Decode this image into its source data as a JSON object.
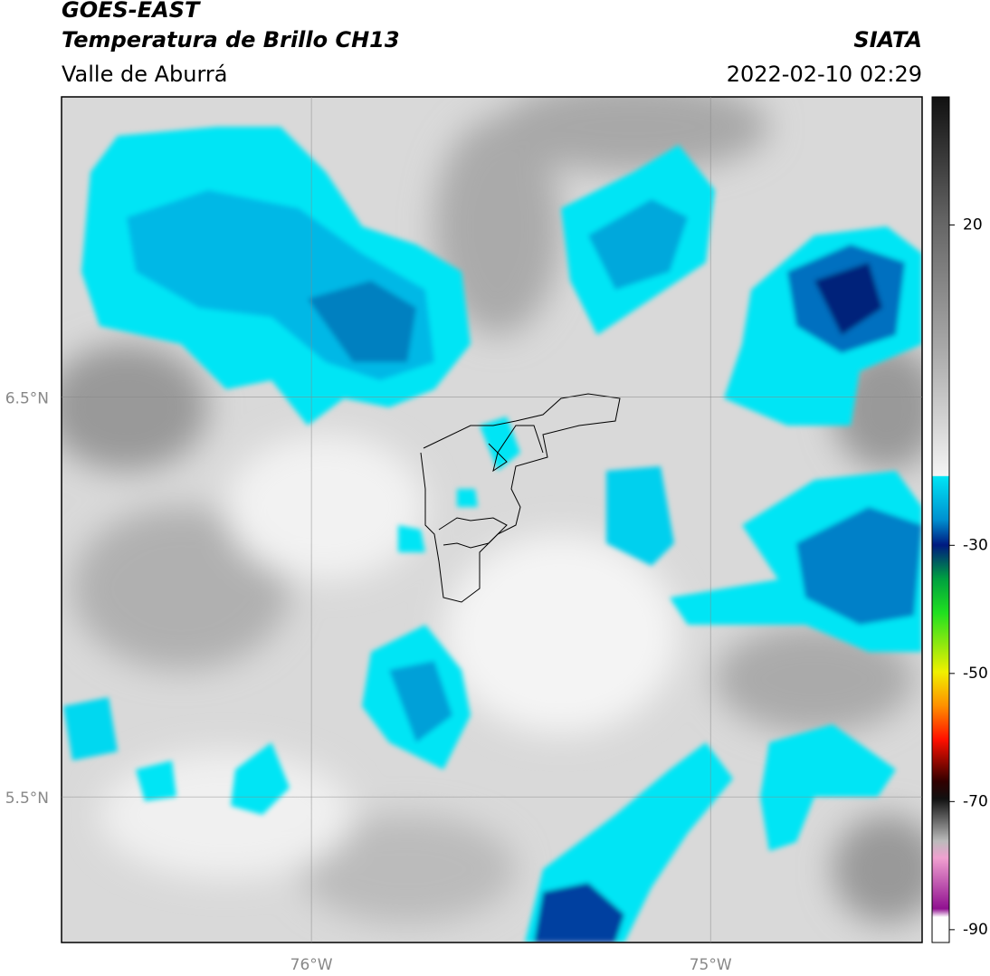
{
  "header": {
    "title": "GOES-EAST",
    "subtitle": "Temperatura de Brillo CH13",
    "region": "Valle de Aburrá",
    "source": "SIATA",
    "timestamp": "2022-02-10 02:29"
  },
  "map": {
    "xlim": [
      -76.626,
      -74.47
    ],
    "ylim": [
      5.136,
      7.25
    ],
    "lat_ticks": [
      {
        "value": 6.5,
        "label": "6.5°N"
      },
      {
        "value": 5.5,
        "label": "5.5°N"
      }
    ],
    "lon_ticks": [
      {
        "value": -76,
        "label": "76°W"
      },
      {
        "value": -75,
        "label": "75°W"
      }
    ]
  },
  "colorbar": {
    "lim": [
      -92,
      40
    ],
    "ticks": [
      20,
      -30,
      -50,
      -70,
      -90
    ]
  }
}
